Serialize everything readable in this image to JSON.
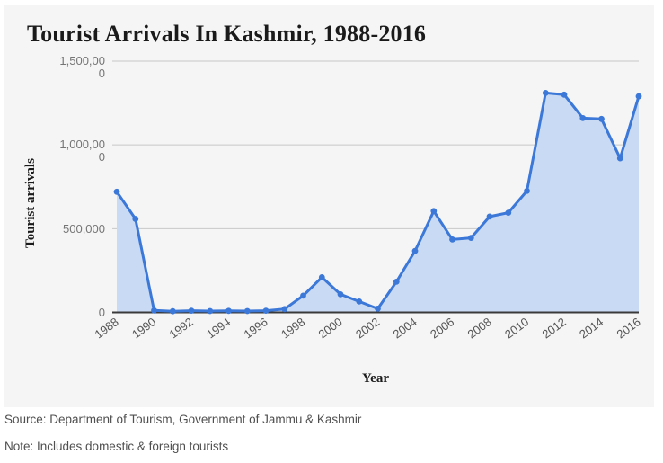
{
  "card": {
    "title": "Tourist Arrivals In Kashmir, 1988-2016",
    "background": "#f5f5f5"
  },
  "footer": {
    "source": "Source: Department of Tourism, Government of Jammu & Kashmir",
    "note": "Note: Includes domestic & foreign tourists"
  },
  "chart_data": {
    "type": "area",
    "title": "Tourist Arrivals In Kashmir, 1988-2016",
    "xlabel": "Year",
    "ylabel": "Tourist arrivals",
    "x": [
      1988,
      1989,
      1990,
      1991,
      1992,
      1993,
      1994,
      1995,
      1996,
      1997,
      1998,
      1999,
      2000,
      2001,
      2002,
      2003,
      2004,
      2005,
      2006,
      2007,
      2008,
      2009,
      2010,
      2011,
      2012,
      2013,
      2014,
      2015,
      2016
    ],
    "values": [
      720000,
      558000,
      12000,
      7000,
      10000,
      8000,
      9000,
      8000,
      10000,
      20000,
      100000,
      210000,
      108000,
      65000,
      22000,
      183000,
      367000,
      605000,
      435000,
      445000,
      572000,
      595000,
      725000,
      1310000,
      1300000,
      1160000,
      1155000,
      920000,
      1290000
    ],
    "ylim": [
      0,
      1500000
    ],
    "yticks": [
      0,
      500000,
      1000000,
      1500000
    ],
    "ytick_labels": [
      "0",
      "500,000",
      "1,000,000",
      "1,500,000"
    ],
    "xtick_step": 2,
    "grid": true,
    "legend": false,
    "colors": {
      "line": "#3c78d8",
      "fill": "#c9dbf4",
      "grid": "#c8c8c8",
      "axis": "#3a3a3a",
      "ytick_text": "#757575",
      "xtick_text": "#555555",
      "title_text": "#1a1a1a"
    }
  }
}
